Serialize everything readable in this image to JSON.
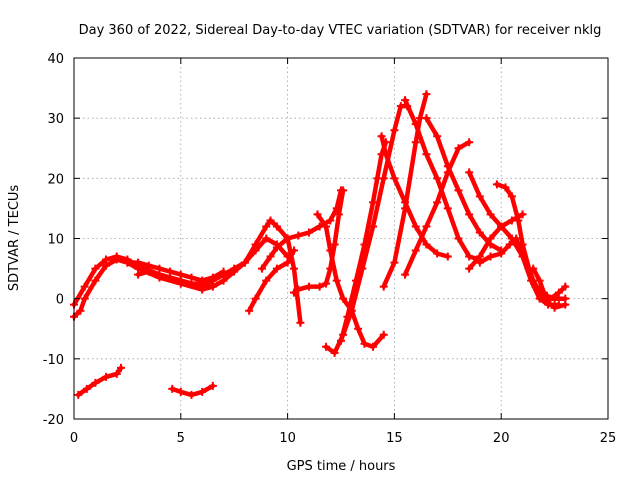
{
  "chart_data": {
    "type": "line",
    "title": "Day 360 of 2022, Sidereal Day-to-day VTEC variation (SDTVAR) for receiver nklg",
    "xlabel": "GPS time / hours",
    "ylabel": "SDTVAR / TECUs",
    "xlim": [
      0,
      25
    ],
    "ylim": [
      -20,
      40
    ],
    "xticks": [
      0,
      5,
      10,
      15,
      20,
      25
    ],
    "yticks": [
      -20,
      -10,
      0,
      10,
      20,
      30,
      40
    ],
    "grid": true,
    "color": "#ff0000",
    "series": [
      {
        "name": "arc-1",
        "points": [
          [
            0,
            -1
          ],
          [
            0.5,
            2
          ],
          [
            1,
            5
          ],
          [
            1.5,
            6.5
          ],
          [
            2,
            7
          ],
          [
            2.5,
            6.5
          ],
          [
            3,
            5.5
          ],
          [
            4,
            4
          ],
          [
            5,
            3
          ],
          [
            5.5,
            2.5
          ],
          [
            6,
            2.5
          ],
          [
            6.5,
            3
          ],
          [
            7,
            4
          ],
          [
            7.5,
            5
          ],
          [
            8,
            6
          ],
          [
            8.5,
            8
          ],
          [
            9,
            10
          ],
          [
            9.5,
            9
          ],
          [
            10,
            7
          ]
        ]
      },
      {
        "name": "arc-2",
        "points": [
          [
            0,
            -3
          ],
          [
            0.3,
            -2
          ],
          [
            0.5,
            0
          ],
          [
            1,
            3
          ],
          [
            1.5,
            5.5
          ],
          [
            2,
            6.5
          ],
          [
            2.5,
            6
          ],
          [
            3,
            5
          ],
          [
            4,
            3.5
          ],
          [
            5,
            2.5
          ],
          [
            6,
            1.5
          ],
          [
            6.5,
            2
          ],
          [
            7,
            3
          ],
          [
            7.5,
            4.5
          ],
          [
            8,
            6
          ],
          [
            8.5,
            9
          ],
          [
            9,
            12
          ],
          [
            9.2,
            13
          ],
          [
            9.5,
            12
          ],
          [
            10,
            10
          ],
          [
            10.3,
            5
          ],
          [
            10.6,
            -4
          ]
        ]
      },
      {
        "name": "arc-3",
        "points": [
          [
            3,
            4
          ],
          [
            3.5,
            4.5
          ],
          [
            4,
            4
          ],
          [
            4.5,
            3.5
          ],
          [
            5,
            3
          ],
          [
            5.5,
            2.5
          ],
          [
            6,
            2
          ],
          [
            6.3,
            2.5
          ]
        ]
      },
      {
        "name": "arc-4",
        "points": [
          [
            2.5,
            6
          ],
          [
            3,
            6
          ],
          [
            3.5,
            5.5
          ],
          [
            4,
            5
          ],
          [
            4.5,
            4.5
          ],
          [
            5,
            4
          ],
          [
            5.5,
            3.5
          ],
          [
            6,
            3
          ],
          [
            6.5,
            3.5
          ],
          [
            7,
            4.5
          ]
        ]
      },
      {
        "name": "arc-5",
        "points": [
          [
            8.2,
            -2
          ],
          [
            8.5,
            0
          ],
          [
            9,
            3
          ],
          [
            9.5,
            5
          ],
          [
            10,
            6
          ],
          [
            10.3,
            8
          ]
        ]
      },
      {
        "name": "arc-6",
        "points": [
          [
            8.8,
            5
          ],
          [
            9.2,
            7
          ],
          [
            9.5,
            8.5
          ],
          [
            10,
            10
          ],
          [
            10.5,
            10.5
          ],
          [
            11,
            11
          ],
          [
            11.5,
            12
          ],
          [
            12,
            13
          ],
          [
            12.3,
            15
          ],
          [
            12.5,
            18
          ]
        ]
      },
      {
        "name": "arc-7",
        "points": [
          [
            10.3,
            1
          ],
          [
            10.5,
            1.5
          ],
          [
            11,
            2
          ],
          [
            11.5,
            2
          ],
          [
            11.8,
            2.5
          ],
          [
            12,
            5
          ],
          [
            12.2,
            9
          ],
          [
            12.4,
            14
          ],
          [
            12.6,
            18
          ]
        ]
      },
      {
        "name": "arc-8",
        "points": [
          [
            11.4,
            14
          ],
          [
            11.8,
            12
          ],
          [
            12,
            8
          ],
          [
            12.3,
            3
          ],
          [
            12.6,
            0
          ],
          [
            13,
            -2
          ],
          [
            13.3,
            -5
          ],
          [
            13.6,
            -7.5
          ],
          [
            14,
            -8
          ],
          [
            14.5,
            -6
          ]
        ]
      },
      {
        "name": "arc-9",
        "points": [
          [
            11.8,
            -8
          ],
          [
            12.2,
            -9
          ],
          [
            12.6,
            -6
          ],
          [
            13,
            -2
          ],
          [
            13.5,
            5
          ],
          [
            14,
            12
          ],
          [
            14.5,
            20
          ],
          [
            15,
            28
          ],
          [
            15.3,
            32
          ],
          [
            15.6,
            32
          ]
        ]
      },
      {
        "name": "arc-10",
        "points": [
          [
            12.5,
            -7
          ],
          [
            12.8,
            -3
          ],
          [
            13.2,
            3
          ],
          [
            13.6,
            9
          ],
          [
            14,
            16
          ],
          [
            14.2,
            20
          ],
          [
            14.4,
            24
          ],
          [
            14.6,
            26
          ]
        ]
      },
      {
        "name": "arc-11",
        "points": [
          [
            14.4,
            27
          ],
          [
            14.6,
            24
          ],
          [
            15,
            20
          ],
          [
            15.5,
            16
          ],
          [
            16,
            12
          ],
          [
            16.5,
            9
          ],
          [
            17,
            7.5
          ],
          [
            17.5,
            7
          ]
        ]
      },
      {
        "name": "arc-12",
        "points": [
          [
            14.5,
            2
          ],
          [
            15,
            6
          ],
          [
            15.5,
            15
          ],
          [
            16,
            26
          ],
          [
            16.2,
            30
          ],
          [
            16.5,
            34
          ]
        ]
      },
      {
        "name": "arc-13",
        "points": [
          [
            15.5,
            33
          ],
          [
            16,
            29
          ],
          [
            16.5,
            24
          ],
          [
            17,
            20
          ],
          [
            17.5,
            15
          ],
          [
            18,
            10
          ],
          [
            18.5,
            7
          ],
          [
            19,
            6.5
          ]
        ]
      },
      {
        "name": "arc-14",
        "points": [
          [
            15.5,
            4
          ],
          [
            16,
            8
          ],
          [
            16.5,
            12
          ],
          [
            17,
            16
          ],
          [
            17.5,
            21
          ],
          [
            18,
            25
          ],
          [
            18.5,
            26
          ]
        ]
      },
      {
        "name": "arc-15",
        "points": [
          [
            16.5,
            30
          ],
          [
            17,
            27
          ],
          [
            17.5,
            22
          ],
          [
            18,
            18
          ],
          [
            18.5,
            14
          ],
          [
            19,
            11
          ],
          [
            19.5,
            9
          ],
          [
            20,
            8
          ]
        ]
      },
      {
        "name": "arc-16",
        "points": [
          [
            18.5,
            5
          ],
          [
            19,
            7
          ],
          [
            19.5,
            10
          ],
          [
            20,
            12
          ],
          [
            20.5,
            13
          ],
          [
            21,
            14
          ]
        ]
      },
      {
        "name": "arc-17",
        "points": [
          [
            18.5,
            21
          ],
          [
            19,
            17
          ],
          [
            19.5,
            14
          ],
          [
            20,
            12
          ],
          [
            20.5,
            10
          ],
          [
            21,
            7
          ],
          [
            21.5,
            3
          ],
          [
            22,
            0
          ],
          [
            22.5,
            -1.5
          ],
          [
            23,
            -1
          ]
        ]
      },
      {
        "name": "arc-18",
        "points": [
          [
            19.8,
            19
          ],
          [
            20.2,
            18.5
          ],
          [
            20.5,
            17
          ],
          [
            20.8,
            13
          ],
          [
            21,
            9
          ],
          [
            21.3,
            5
          ],
          [
            21.6,
            2
          ],
          [
            22,
            0
          ],
          [
            22.5,
            0
          ],
          [
            23,
            0
          ]
        ]
      },
      {
        "name": "arc-19",
        "points": [
          [
            19,
            6
          ],
          [
            19.5,
            7
          ],
          [
            20,
            7.5
          ],
          [
            20.4,
            9
          ],
          [
            20.7,
            10
          ],
          [
            21,
            7
          ],
          [
            21.4,
            3
          ],
          [
            21.8,
            0
          ],
          [
            22.2,
            -1
          ],
          [
            22.7,
            -1
          ]
        ]
      },
      {
        "name": "arc-20",
        "points": [
          [
            21.5,
            5
          ],
          [
            21.8,
            3
          ],
          [
            22,
            1
          ],
          [
            22.3,
            0
          ],
          [
            22.7,
            1
          ],
          [
            23,
            2
          ]
        ]
      },
      {
        "name": "arc-21",
        "points": [
          [
            0.2,
            -16
          ],
          [
            0.6,
            -15
          ],
          [
            1,
            -14
          ],
          [
            1.5,
            -13
          ],
          [
            2,
            -12.5
          ],
          [
            2.2,
            -11.5
          ]
        ]
      },
      {
        "name": "arc-22",
        "points": [
          [
            4.6,
            -15
          ],
          [
            5,
            -15.5
          ],
          [
            5.5,
            -16
          ],
          [
            6,
            -15.5
          ],
          [
            6.5,
            -14.5
          ]
        ]
      }
    ]
  }
}
